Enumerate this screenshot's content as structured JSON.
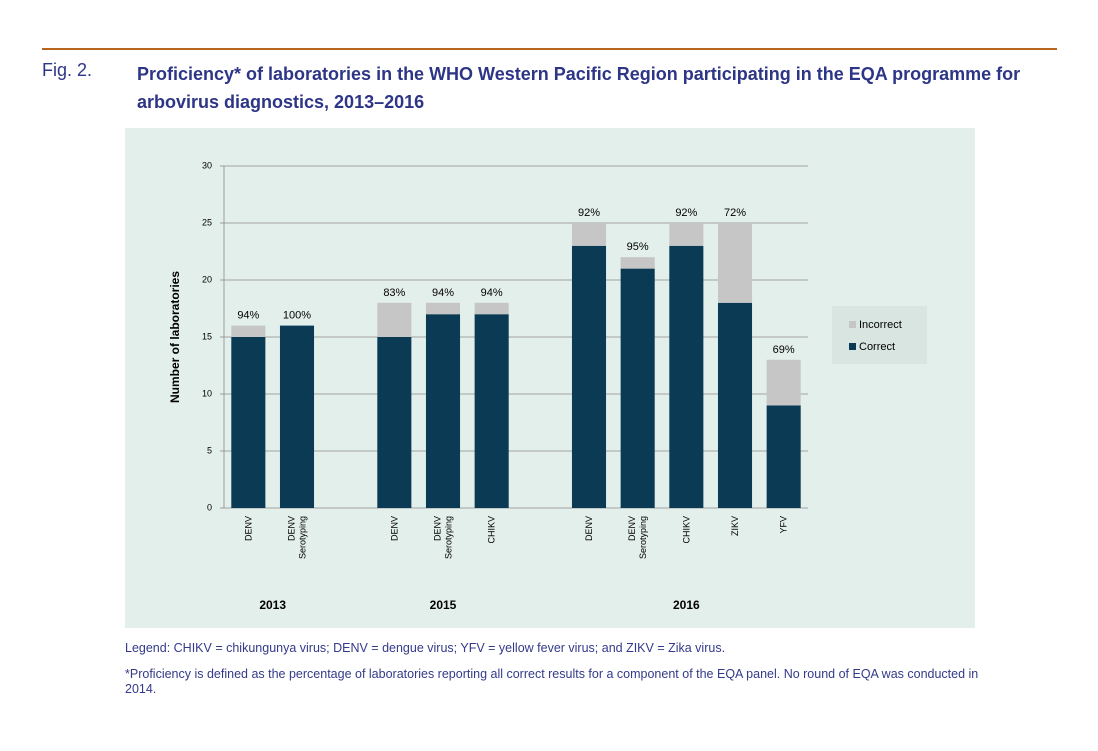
{
  "header": {
    "figure_label": "Fig. 2.",
    "title": "Proficiency* of laboratories in the WHO Western Pacific Region participating in the EQA programme for arbovirus diagnostics, 2013–2016"
  },
  "chart_data": {
    "type": "stacked_bar",
    "y_label": "Number of laboratories",
    "categories": [
      "DENV",
      "DENV Serotyping",
      null,
      "DENV",
      "DENV Serotyping",
      "CHIKV",
      null,
      "DENV",
      "DENV Serotyping",
      "CHIKV",
      "ZIKV",
      "YFV"
    ],
    "groups": [
      "2013",
      "2015",
      "2016"
    ],
    "series": [
      {
        "name": "Correct",
        "color": "#0b3a55",
        "values": [
          15,
          16,
          null,
          15,
          17,
          17,
          null,
          23,
          21,
          23,
          18,
          9
        ]
      },
      {
        "name": "Incorrect",
        "color": "#c6c6c6",
        "values": [
          1,
          0,
          null,
          3,
          1,
          1,
          null,
          2,
          1,
          2,
          7,
          4
        ]
      }
    ],
    "data_labels": {
      "values": [
        94,
        100,
        null,
        83,
        94,
        94,
        null,
        92,
        95,
        92,
        72,
        69
      ],
      "value_labels": [
        "94%",
        "100%",
        null,
        "83%",
        "94%",
        "94%",
        null,
        "92%",
        "95%",
        "92%",
        "72%",
        "69%"
      ]
    },
    "ylim": [
      0,
      30
    ],
    "yticks": [
      0,
      5,
      10,
      15,
      20,
      25,
      30
    ],
    "grid": true,
    "legend": "right"
  },
  "notes": [
    "Legend: CHIKV = chikungunya virus; DENV = dengue virus; YFV = yellow fever virus; and ZIKV = Zika virus.",
    "*Proficiency is defined as the percentage of laboratories reporting all correct results for a component of the EQA panel. No round of EQA was conducted in 2014."
  ]
}
